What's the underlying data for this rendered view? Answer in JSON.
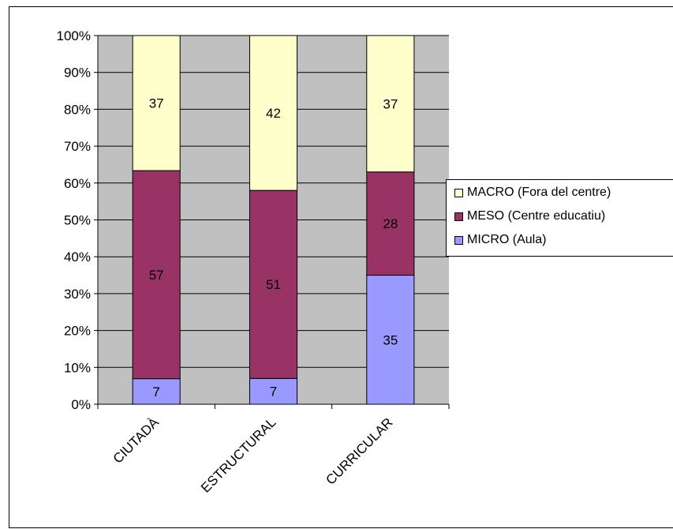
{
  "chart_data": {
    "type": "bar",
    "stacked": "percent",
    "categories": [
      "CIUTADÀ",
      "ESTRUCTURAL",
      "CURRICULAR"
    ],
    "series": [
      {
        "name": "MICRO (Aula)",
        "values": [
          7,
          7,
          35
        ],
        "color": "#9999ff"
      },
      {
        "name": "MESO (Centre educatiu)",
        "values": [
          57,
          51,
          28
        ],
        "color": "#993366"
      },
      {
        "name": "MACRO (Fora del centre)",
        "values": [
          37,
          42,
          37
        ],
        "color": "#ffffcc"
      }
    ],
    "yticks": [
      "0%",
      "10%",
      "20%",
      "30%",
      "40%",
      "50%",
      "60%",
      "70%",
      "80%",
      "90%",
      "100%"
    ],
    "ylim": [
      0,
      100
    ],
    "plot_background": "#c0c0c0",
    "grid": true,
    "legend_position": "right"
  }
}
